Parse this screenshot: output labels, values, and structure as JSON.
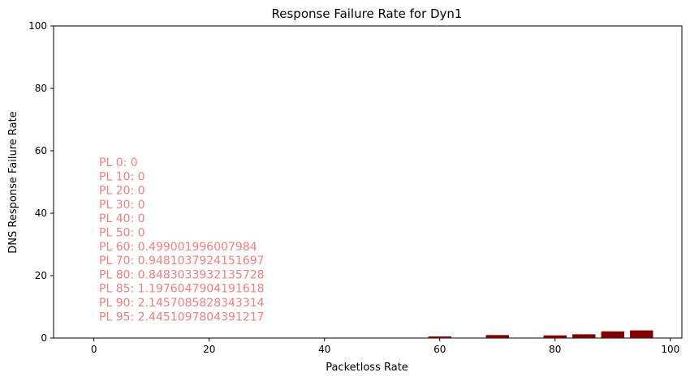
{
  "chart_data": {
    "type": "bar",
    "title": "Response Failure Rate for Dyn1",
    "xlabel": "Packetloss Rate",
    "ylabel": "DNS Response Failure Rate",
    "xlim": [
      -7,
      102
    ],
    "ylim": [
      0,
      100
    ],
    "xticks": [
      0,
      20,
      40,
      60,
      80,
      100
    ],
    "yticks": [
      0,
      20,
      40,
      60,
      80,
      100
    ],
    "grid": false,
    "bar_width": 4,
    "bar_color": "#800000",
    "annotation_color": "#f08080",
    "x": [
      0,
      10,
      20,
      30,
      40,
      50,
      60,
      70,
      80,
      85,
      90,
      95
    ],
    "values": [
      0,
      0,
      0,
      0,
      0,
      0,
      0.499001996007984,
      0.9481037924151697,
      0.8483033932135728,
      1.1976047904191618,
      2.1457085828343314,
      2.4451097804391217
    ],
    "annotations": [
      "PL 0: 0",
      "PL 10: 0",
      "PL 20: 0",
      "PL 30: 0",
      "PL 40: 0",
      "PL 50: 0",
      "PL 60: 0.499001996007984",
      "PL 70: 0.9481037924151697",
      "PL 80: 0.8483033932135728",
      "PL 85: 1.1976047904191618",
      "PL 90: 2.1457085828343314",
      "PL 95: 2.4451097804391217"
    ]
  }
}
